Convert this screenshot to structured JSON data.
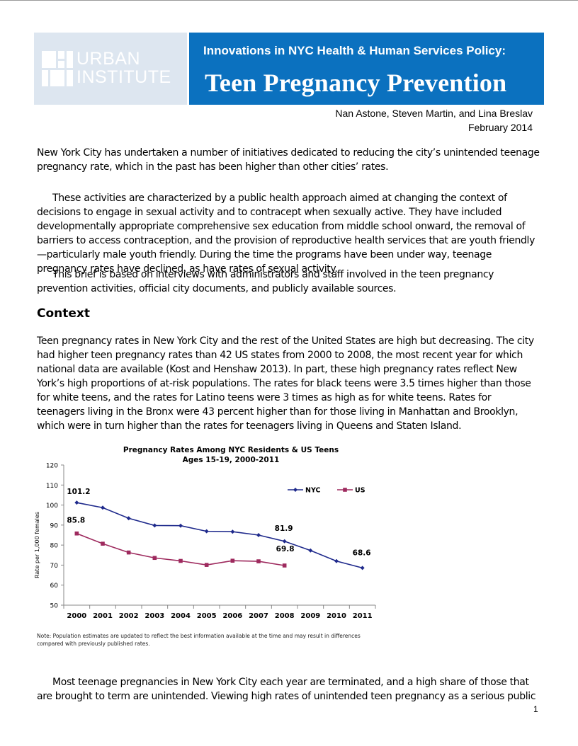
{
  "header": {
    "logo_line1": "URBAN",
    "logo_line2": "INSTITUTE",
    "series_title": "Innovations in NYC Health & Human Services Policy:",
    "title": "Teen Pregnancy Prevention",
    "authors": "Nan Astone, Steven Martin, and Lina Breslav",
    "date": "February 2014",
    "colors": {
      "banner": "#0b71bf",
      "logo_bg": "#dde6f0"
    }
  },
  "body": {
    "p1": "New York City has undertaken a number of initiatives dedicated to reducing the city’s unintended teenage pregnancy rate, which in the past has been higher than other cities’ rates.",
    "p2": "These activities are characterized by a public health approach aimed at changing the context of decisions to engage in sexual activity and to contracept when sexually active. They have included developmentally appropriate comprehensive sex education from middle school onward, the removal of barriers to access contraception, and the provision of reproductive health services that are youth friendly—particularly male youth friendly. During the time the programs have been under way, teenage pregnancy rates have declined, as have rates of sexual activity.",
    "p3": "This brief is based on interviews with administrators and staff involved in the teen pregnancy prevention activities, official city documents, and publicly available sources.",
    "context_heading": "Context",
    "p4": "Teen pregnancy rates in New York City and the rest of the United States are high but decreasing. The city had higher teen pregnancy rates than 42 US states from 2000 to 2008, the most recent year for which national data are available (Kost and Henshaw 2013). In part, these high pregnancy rates reflect New York’s high proportions of at-risk populations. The rates for black teens were 3.5 times higher than those for white teens, and the rates for Latino teens were 3 times as high as for white teens. Rates for teenagers living in the Bronx were 43 percent higher than for those living in Manhattan and Brooklyn, which were in turn higher than the rates for teenagers living in Queens and Staten Island.",
    "note": "Note: Population estimates are updated to reflect the best information available at the time and may result in differences compared with previously published rates.",
    "p5": "Most teenage pregnancies in New York City each year are terminated, and a high share of those that are brought to term are unintended. Viewing high rates of unintended teen pregnancy as a serious public",
    "page_number": "1"
  },
  "chart_data": {
    "type": "line",
    "title": "Pregnancy Rates Among NYC Residents & US Teens",
    "subtitle": "Ages 15-19, 2000-2011",
    "xlabel": "",
    "ylabel": "Rate per 1,000 females",
    "ylim": [
      50,
      120
    ],
    "yticks": [
      50,
      60,
      70,
      80,
      90,
      100,
      110,
      120
    ],
    "categories": [
      "2000",
      "2001",
      "2002",
      "2003",
      "2004",
      "2005",
      "2006",
      "2007",
      "2008",
      "2009",
      "2010",
      "2011"
    ],
    "legend_position": "top-right",
    "grid": false,
    "series": [
      {
        "name": "NYC",
        "color": "#1f2a8c",
        "marker": "diamond",
        "values": [
          101.2,
          98.7,
          93.4,
          89.8,
          89.7,
          86.9,
          86.7,
          85.0,
          81.9,
          77.3,
          72.0,
          68.6
        ]
      },
      {
        "name": "US",
        "color": "#9e2a5e",
        "marker": "square",
        "values": [
          85.8,
          80.7,
          76.3,
          73.6,
          72.1,
          70.1,
          72.2,
          71.9,
          69.8,
          null,
          null,
          null
        ]
      }
    ],
    "data_labels": [
      {
        "text": "101.2",
        "series": 0,
        "index": 0
      },
      {
        "text": "85.8",
        "series": 1,
        "index": 0
      },
      {
        "text": "81.9",
        "series": 0,
        "index": 8
      },
      {
        "text": "69.8",
        "series": 1,
        "index": 8
      },
      {
        "text": "68.6",
        "series": 0,
        "index": 11
      }
    ]
  }
}
